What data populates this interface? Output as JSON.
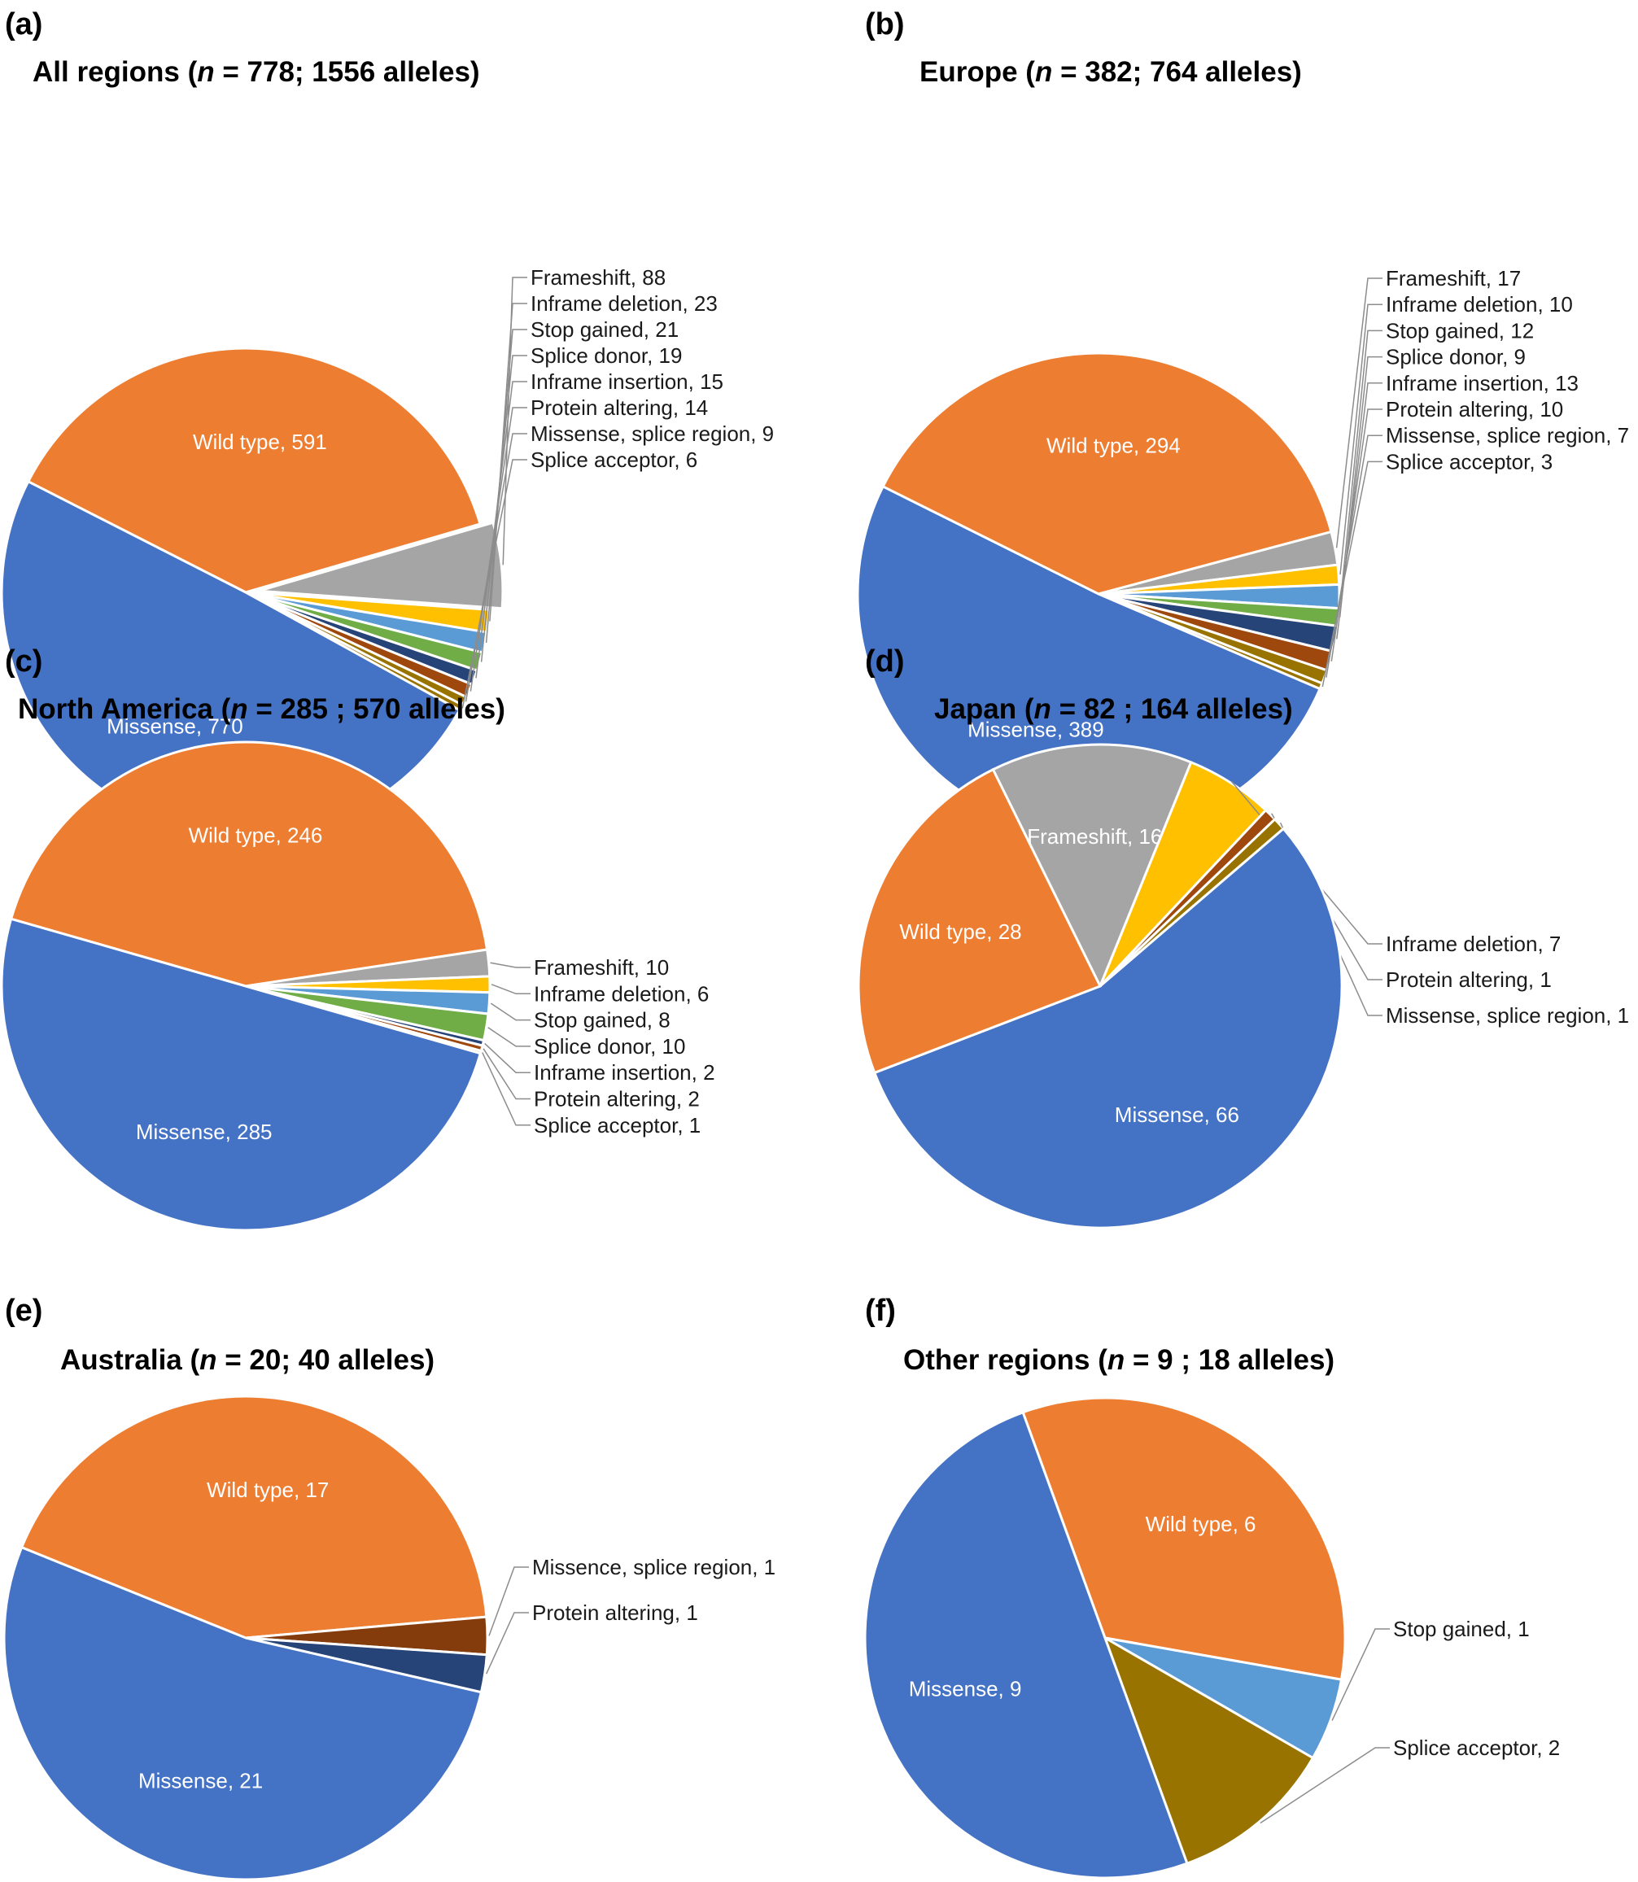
{
  "colors": {
    "Wild type": "#ED7D31",
    "Missense": "#4472C4",
    "Frameshift": "#A5A5A5",
    "Inframe deletion": "#FFC000",
    "Stop gained": "#5B9BD5",
    "Splice donor": "#70AD47",
    "Inframe insertion": "#264478",
    "Protein altering": "#9E480E",
    "Missense, splice region": "#997300",
    "Missence, splice region": "#843C0C",
    "Splice acceptor": "#997300"
  },
  "chart_data": [
    {
      "type": "pie",
      "panel": "(a)",
      "title": {
        "pre": "All regions (",
        "ital": "n",
        "post": " = 778; 1556 alleles)"
      },
      "slices": [
        {
          "label": "Wild type, 591",
          "category": "Wild type",
          "value": 591,
          "inside": true
        },
        {
          "label": "Frameshift, 88",
          "category": "Frameshift",
          "value": 88,
          "exploded": true
        },
        {
          "label": "Inframe deletion, 23",
          "category": "Inframe deletion",
          "value": 23
        },
        {
          "label": "Stop gained, 21",
          "category": "Stop gained",
          "value": 21
        },
        {
          "label": "Splice donor, 19",
          "category": "Splice donor",
          "value": 19
        },
        {
          "label": "Inframe insertion, 15",
          "category": "Inframe insertion",
          "value": 15
        },
        {
          "label": "Protein altering, 14",
          "category": "Protein altering",
          "value": 14
        },
        {
          "label": "Missense, splice region, 9",
          "category": "Missense, splice region",
          "value": 9
        },
        {
          "label": "Splice acceptor, 6",
          "category": "Splice acceptor",
          "value": 6
        },
        {
          "label": "Missense, 770",
          "category": "Missense",
          "value": 770,
          "inside": true
        }
      ]
    },
    {
      "type": "pie",
      "panel": "(b)",
      "title": {
        "pre": "Europe (",
        "ital": "n",
        "post": " = 382; 764 alleles)"
      },
      "slices": [
        {
          "label": "Wild type, 294",
          "category": "Wild type",
          "value": 294,
          "inside": true
        },
        {
          "label": "Frameshift, 17",
          "category": "Frameshift",
          "value": 17
        },
        {
          "label": "Inframe deletion, 10",
          "category": "Inframe deletion",
          "value": 10
        },
        {
          "label": "Stop gained, 12",
          "category": "Stop gained",
          "value": 12
        },
        {
          "label": "Splice donor, 9",
          "category": "Splice donor",
          "value": 9
        },
        {
          "label": "Inframe insertion, 13",
          "category": "Inframe insertion",
          "value": 13
        },
        {
          "label": "Protein altering, 10",
          "category": "Protein altering",
          "value": 10
        },
        {
          "label": "Missense, splice region, 7",
          "category": "Missense, splice region",
          "value": 7
        },
        {
          "label": "Splice acceptor, 3",
          "category": "Splice acceptor",
          "value": 3
        },
        {
          "label": "Missense, 389",
          "category": "Missense",
          "value": 389,
          "inside": true
        }
      ]
    },
    {
      "type": "pie",
      "panel": "(c)",
      "title": {
        "pre": "North America (",
        "ital": "n",
        "post": " = 285 ; 570 alleles)"
      },
      "slices": [
        {
          "label": "Wild type, 246",
          "category": "Wild type",
          "value": 246,
          "inside": true
        },
        {
          "label": "Frameshift, 10",
          "category": "Frameshift",
          "value": 10
        },
        {
          "label": "Inframe deletion, 6",
          "category": "Inframe deletion",
          "value": 6
        },
        {
          "label": "Stop gained, 8",
          "category": "Stop gained",
          "value": 8
        },
        {
          "label": "Splice donor, 10",
          "category": "Splice donor",
          "value": 10
        },
        {
          "label": "Inframe insertion, 2",
          "category": "Inframe insertion",
          "value": 2
        },
        {
          "label": "Protein altering, 2",
          "category": "Protein altering",
          "value": 2
        },
        {
          "label": "Splice acceptor, 1",
          "category": "Splice acceptor",
          "value": 1
        },
        {
          "label": "Missense, 285",
          "category": "Missense",
          "value": 285,
          "inside": true
        }
      ]
    },
    {
      "type": "pie",
      "panel": "(d)",
      "title": {
        "pre": "Japan (",
        "ital": "n",
        "post": " = 82 ; 164 alleles)"
      },
      "slices": [
        {
          "label": "Frameshift, 16",
          "category": "Frameshift",
          "value": 16,
          "inside": true
        },
        {
          "label": "Inframe deletion, 7",
          "category": "Inframe deletion",
          "value": 7
        },
        {
          "label": "Protein altering, 1",
          "category": "Protein altering",
          "value": 1
        },
        {
          "label": "Missense, splice region, 1",
          "category": "Missense, splice region",
          "value": 1
        },
        {
          "label": "Missense, 66",
          "category": "Missense",
          "value": 66,
          "inside": true
        },
        {
          "label": "Wild type, 28",
          "category": "Wild type",
          "value": 28,
          "inside": true
        }
      ]
    },
    {
      "type": "pie",
      "panel": "(e)",
      "title": {
        "pre": "Australia (",
        "ital": "n",
        "post": " = 20; 40 alleles)"
      },
      "slices": [
        {
          "label": "Wild type, 17",
          "category": "Wild type",
          "value": 17,
          "inside": true
        },
        {
          "label": "Missence, splice region, 1",
          "category": "Missence, splice region",
          "value": 1
        },
        {
          "label": "Protein altering, 1",
          "category": "Inframe insertion",
          "value": 1
        },
        {
          "label": "Missense, 21",
          "category": "Missense",
          "value": 21,
          "inside": true
        }
      ]
    },
    {
      "type": "pie",
      "panel": "(f)",
      "title": {
        "pre": "Other regions (",
        "ital": "n",
        "post": " = 9 ; 18 alleles)"
      },
      "slices": [
        {
          "label": "Wild type, 6",
          "category": "Wild type",
          "value": 6,
          "inside": true
        },
        {
          "label": "Stop gained, 1",
          "category": "Stop gained",
          "value": 1
        },
        {
          "label": "Splice acceptor, 2",
          "category": "Splice acceptor",
          "value": 2
        },
        {
          "label": "Missense, 9",
          "category": "Missense",
          "value": 9,
          "inside": true
        }
      ]
    }
  ]
}
